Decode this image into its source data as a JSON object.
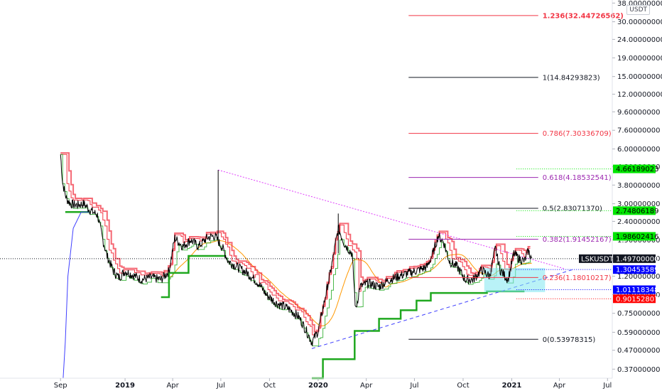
{
  "chart_data": {
    "type": "line",
    "symbol": "LSKUSDT",
    "quote_unit": "USDT",
    "y_scale": "log",
    "ylim": [
      0.33,
      39.5
    ],
    "xlim": [
      "2018-08-25",
      "2021-07-10"
    ],
    "y_ticks": [
      "0.37000000",
      "0.47000000",
      "0.59000000",
      "0.75000000",
      "0.95000000",
      "1.20000000",
      "1.50000000",
      "1.90000000",
      "2.40000000",
      "3.00000000",
      "3.80000000",
      "4.80000000",
      "6.00000000",
      "7.60000000",
      "9.60000000",
      "12.00000000",
      "15.00000000",
      "19.00000000",
      "24.00000000",
      "30.00000000",
      "38.00000000"
    ],
    "x_ticks": [
      {
        "label": "Sep",
        "date": "2018-09-01",
        "bold": false
      },
      {
        "label": "2019",
        "date": "2019-01-01",
        "bold": true
      },
      {
        "label": "Apr",
        "date": "2019-04-01",
        "bold": false
      },
      {
        "label": "Jul",
        "date": "2019-07-01",
        "bold": false
      },
      {
        "label": "Oct",
        "date": "2019-10-01",
        "bold": false
      },
      {
        "label": "2020",
        "date": "2020-01-01",
        "bold": true
      },
      {
        "label": "Apr",
        "date": "2020-04-01",
        "bold": false
      },
      {
        "label": "Jul",
        "date": "2020-07-01",
        "bold": false
      },
      {
        "label": "Oct",
        "date": "2020-10-01",
        "bold": false
      },
      {
        "label": "2021",
        "date": "2021-01-01",
        "bold": true
      },
      {
        "label": "Apr",
        "date": "2021-04-01",
        "bold": false
      },
      {
        "label": "Jul",
        "date": "2021-07-01",
        "bold": false
      }
    ],
    "price_series": {
      "name": "LSKUSDT",
      "color": "#000000",
      "points": [
        [
          "2018-09-01",
          5.6
        ],
        [
          "2018-09-05",
          3.9
        ],
        [
          "2018-09-12",
          3.2
        ],
        [
          "2018-09-20",
          3.0
        ],
        [
          "2018-10-01",
          2.95
        ],
        [
          "2018-10-15",
          3.0
        ],
        [
          "2018-10-25",
          2.8
        ],
        [
          "2018-11-10",
          2.6
        ],
        [
          "2018-11-20",
          1.9
        ],
        [
          "2018-11-28",
          1.55
        ],
        [
          "2018-12-10",
          1.28
        ],
        [
          "2018-12-20",
          1.18
        ],
        [
          "2019-01-01",
          1.28
        ],
        [
          "2019-01-15",
          1.22
        ],
        [
          "2019-02-01",
          1.15
        ],
        [
          "2019-02-20",
          1.18
        ],
        [
          "2019-03-10",
          1.15
        ],
        [
          "2019-03-25",
          1.28
        ],
        [
          "2019-04-05",
          1.95
        ],
        [
          "2019-04-20",
          1.75
        ],
        [
          "2019-05-05",
          1.9
        ],
        [
          "2019-05-20",
          1.75
        ],
        [
          "2019-06-05",
          1.95
        ],
        [
          "2019-06-20",
          2.0
        ],
        [
          "2019-06-27",
          1.85
        ],
        [
          "2019-07-05",
          1.7
        ],
        [
          "2019-07-15",
          1.45
        ],
        [
          "2019-08-01",
          1.35
        ],
        [
          "2019-08-20",
          1.25
        ],
        [
          "2019-09-10",
          1.1
        ],
        [
          "2019-09-25",
          0.95
        ],
        [
          "2019-10-15",
          0.85
        ],
        [
          "2019-11-05",
          0.8
        ],
        [
          "2019-11-25",
          0.72
        ],
        [
          "2019-12-10",
          0.6
        ],
        [
          "2019-12-20",
          0.52
        ],
        [
          "2020-01-01",
          0.6
        ],
        [
          "2020-01-12",
          0.85
        ],
        [
          "2020-01-25",
          1.3
        ],
        [
          "2020-02-08",
          2.2
        ],
        [
          "2020-02-20",
          1.8
        ],
        [
          "2020-03-05",
          1.6
        ],
        [
          "2020-03-12",
          0.78
        ],
        [
          "2020-03-20",
          1.05
        ],
        [
          "2020-04-05",
          1.1
        ],
        [
          "2020-04-25",
          1.05
        ],
        [
          "2020-05-15",
          1.15
        ],
        [
          "2020-06-01",
          1.2
        ],
        [
          "2020-06-20",
          1.25
        ],
        [
          "2020-07-10",
          1.3
        ],
        [
          "2020-07-25",
          1.35
        ],
        [
          "2020-08-05",
          1.6
        ],
        [
          "2020-08-15",
          2.0
        ],
        [
          "2020-08-25",
          1.85
        ],
        [
          "2020-09-05",
          1.45
        ],
        [
          "2020-09-20",
          1.35
        ],
        [
          "2020-10-05",
          1.15
        ],
        [
          "2020-10-20",
          1.15
        ],
        [
          "2020-11-05",
          1.3
        ],
        [
          "2020-11-20",
          1.2
        ],
        [
          "2020-12-01",
          1.7
        ],
        [
          "2020-12-10",
          1.3
        ],
        [
          "2020-12-25",
          1.15
        ],
        [
          "2021-01-05",
          1.6
        ],
        [
          "2021-01-15",
          1.5
        ],
        [
          "2021-01-25",
          1.45
        ],
        [
          "2021-02-01",
          1.65
        ],
        [
          "2021-02-08",
          1.497
        ]
      ]
    },
    "spikes": [
      {
        "date": "2019-06-26",
        "low": 1.9,
        "high": 4.6
      },
      {
        "date": "2020-02-08",
        "low": 1.6,
        "high": 2.65
      }
    ],
    "fib_levels": [
      {
        "label": "1.236(32.44726562)",
        "ratio": "1.236",
        "value": 32.44726562,
        "color": "#f23645",
        "bold": true
      },
      {
        "label": "1(14.84293823)",
        "ratio": "1",
        "value": 14.84293823,
        "color": "#131722",
        "bold": false
      },
      {
        "label": "0.786(7.30336709)",
        "ratio": "0.786",
        "value": 7.30336709,
        "color": "#f23645",
        "bold": false
      },
      {
        "label": "0.618(4.18532541)",
        "ratio": "0.618",
        "value": 4.18532541,
        "color": "#9c27b0",
        "bold": false
      },
      {
        "label": "0.5(2.83071370)",
        "ratio": "0.5",
        "value": 2.8307137,
        "color": "#131722",
        "bold": false
      },
      {
        "label": "0.382(1.91452167)",
        "ratio": "0.382",
        "value": 1.91452167,
        "color": "#9c27b0",
        "bold": false
      },
      {
        "label": "0.236(1.18010217)",
        "ratio": "0.236",
        "value": 1.18010217,
        "color": "#f23645",
        "bold": false
      },
      {
        "label": "0(0.53978315)",
        "ratio": "0",
        "value": 0.53978315,
        "color": "#131722",
        "bold": false
      }
    ],
    "fib_start_date": "2020-06-20",
    "fib_end_date": "2021-02-20",
    "price_tags": [
      {
        "text": "4.66189023",
        "value": 4.66189023,
        "bg": "#00e600",
        "fg": "#000000"
      },
      {
        "text": "2.74806189",
        "value": 2.74806189,
        "bg": "#00e600",
        "fg": "#000000"
      },
      {
        "text": "1.98602416",
        "value": 1.98602416,
        "bg": "#00e600",
        "fg": "#000000"
      },
      {
        "text": "1.30453589",
        "value": 1.30453589,
        "bg": "#0000ff",
        "fg": "#ffffff"
      },
      {
        "text": "1.01118348",
        "value": 1.01118348,
        "bg": "#0000ff",
        "fg": "#ffffff"
      },
      {
        "text": "0.90152807",
        "value": 0.90152807,
        "bg": "#ff0000",
        "fg": "#ffffff"
      }
    ],
    "last_price": {
      "symbol": "LSKUSDT",
      "text": "1.49700000",
      "value": 1.497
    },
    "colors": {
      "price": "#000000",
      "red_stop": "#f23645",
      "green_stop": "#1fa81f",
      "ma": "#ff9800",
      "blue_line": "#3f3fff",
      "trend_top": "#e040fb",
      "trend_bottom": "#3f3fff",
      "box_fill": "#7fe7f0",
      "tag_guide": "#00e600"
    }
  }
}
